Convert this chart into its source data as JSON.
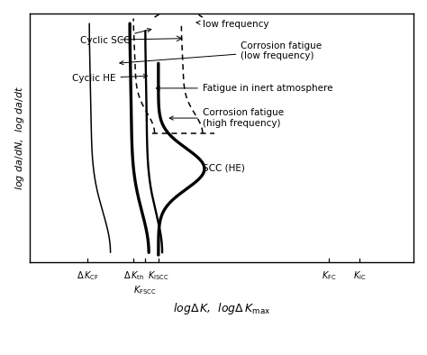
{
  "background_color": "#ffffff",
  "xlim": [
    0,
    10
  ],
  "ylim": [
    0,
    10
  ],
  "x_CF": 1.5,
  "x_th": 2.7,
  "x_ISCC": 3.35,
  "x_FSCC": 3.0,
  "x_FC": 7.8,
  "x_IC": 8.6,
  "ann_fs": 7.5,
  "ylabel": "log $da/dN$,  log $da/dt$",
  "xlabel": "log$\\Delta\\,K$,  log$\\Delta\\,K_\\mathrm{max}$"
}
